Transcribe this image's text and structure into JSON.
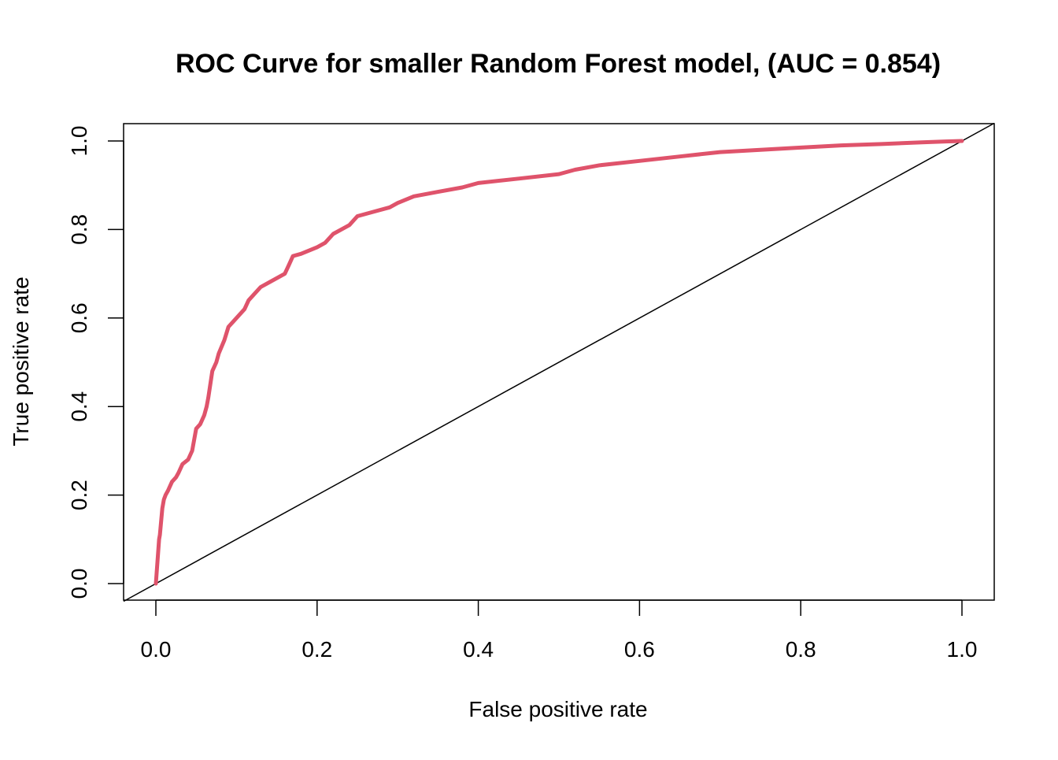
{
  "chart_data": {
    "type": "line",
    "title": "ROC Curve for smaller Random Forest model, (AUC = 0.854)",
    "xlabel": "False positive rate",
    "ylabel": "True positive rate",
    "xlim": [
      0.0,
      1.0
    ],
    "ylim": [
      0.0,
      1.0
    ],
    "x_ticks": [
      "0.0",
      "0.2",
      "0.4",
      "0.6",
      "0.8",
      "1.0"
    ],
    "y_ticks": [
      "0.0",
      "0.2",
      "0.4",
      "0.6",
      "0.8",
      "1.0"
    ],
    "grid": false,
    "colors": {
      "curve": "#DF536B",
      "reference": "#000000",
      "axes": "#000000"
    },
    "series": [
      {
        "x": [
          0.0,
          0.004,
          0.005,
          0.008,
          0.01,
          0.012,
          0.015,
          0.02,
          0.025,
          0.028,
          0.033,
          0.04,
          0.045,
          0.05,
          0.055,
          0.06,
          0.063,
          0.065,
          0.07,
          0.075,
          0.078,
          0.085,
          0.09,
          0.095,
          0.1,
          0.11,
          0.115,
          0.12,
          0.13,
          0.14,
          0.15,
          0.16,
          0.165,
          0.17,
          0.18,
          0.2,
          0.21,
          0.22,
          0.23,
          0.24,
          0.25,
          0.27,
          0.29,
          0.3,
          0.32,
          0.35,
          0.38,
          0.4,
          0.45,
          0.5,
          0.52,
          0.55,
          0.6,
          0.65,
          0.7,
          0.75,
          0.8,
          0.85,
          0.9,
          0.95,
          0.98,
          1.0
        ],
        "y": [
          0.0,
          0.1,
          0.11,
          0.17,
          0.19,
          0.2,
          0.21,
          0.23,
          0.24,
          0.25,
          0.27,
          0.28,
          0.3,
          0.35,
          0.36,
          0.38,
          0.4,
          0.42,
          0.48,
          0.5,
          0.52,
          0.55,
          0.58,
          0.59,
          0.6,
          0.62,
          0.64,
          0.65,
          0.67,
          0.68,
          0.69,
          0.7,
          0.72,
          0.74,
          0.745,
          0.76,
          0.77,
          0.79,
          0.8,
          0.81,
          0.83,
          0.84,
          0.85,
          0.86,
          0.875,
          0.885,
          0.895,
          0.905,
          0.915,
          0.925,
          0.935,
          0.945,
          0.955,
          0.965,
          0.975,
          0.98,
          0.985,
          0.99,
          0.993,
          0.997,
          0.999,
          1.0
        ]
      },
      {
        "x": [
          0.0,
          1.0
        ],
        "y": [
          0.0,
          1.0
        ]
      }
    ]
  }
}
